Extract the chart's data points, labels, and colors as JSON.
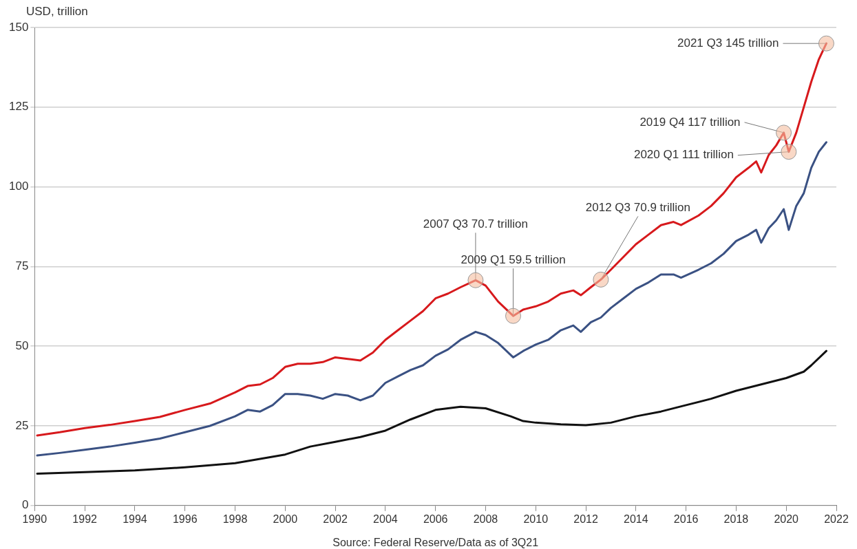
{
  "chart_data": {
    "type": "line",
    "ylabel": "USD, trillion",
    "annotations": [
      {
        "text": "2007 Q3 70.7 trillion",
        "x": 2007.6,
        "y": 70.7
      },
      {
        "text": "2009 Q1 59.5 trillion",
        "x": 2009.1,
        "y": 59.5
      },
      {
        "text": "2012 Q3 70.9 trillion",
        "x": 2012.6,
        "y": 70.9
      },
      {
        "text": "2019 Q4 117 trillion",
        "x": 2019.9,
        "y": 117
      },
      {
        "text": "2020 Q1 111 trillion",
        "x": 2020.1,
        "y": 111
      },
      {
        "text": "2021 Q3 145 trillion",
        "x": 2021.6,
        "y": 145
      },
      "Source: Federal Reserve/Data as of 3Q21"
    ],
    "series": [
      {
        "color": "#d7191c",
        "x": [
          1990.1,
          1991,
          1992,
          1993,
          1994,
          1995,
          1996,
          1997,
          1998,
          1998.5,
          1999,
          1999.5,
          2000,
          2000.5,
          2001,
          2001.5,
          2002,
          2002.5,
          2003,
          2003.5,
          2004,
          2004.5,
          2005,
          2005.5,
          2006,
          2006.5,
          2007,
          2007.6,
          2008,
          2008.5,
          2009.1,
          2009.5,
          2010,
          2010.5,
          2011,
          2011.5,
          2011.8,
          2012.2,
          2012.6,
          2013,
          2013.5,
          2014,
          2014.5,
          2015,
          2015.5,
          2015.8,
          2016.5,
          2017,
          2017.5,
          2018,
          2018.5,
          2018.8,
          2019,
          2019.3,
          2019.6,
          2019.9,
          2020.1,
          2020.4,
          2020.7,
          2021,
          2021.3,
          2021.6
        ],
        "values": [
          22,
          23,
          24.3,
          25.3,
          26.5,
          27.8,
          30,
          32,
          35.5,
          37.5,
          38,
          40,
          43.5,
          44.5,
          44.5,
          45,
          46.5,
          46,
          45.5,
          48,
          52,
          55,
          58,
          61,
          65,
          66.5,
          68.5,
          70.7,
          69,
          64,
          59.5,
          61.5,
          62.5,
          64,
          66.5,
          67.5,
          66,
          68.5,
          70.9,
          74,
          78,
          82,
          85,
          88,
          89,
          88,
          91,
          94,
          98,
          103,
          106,
          108,
          104.5,
          110,
          113,
          117,
          111,
          117,
          125,
          133,
          140,
          145
        ]
      },
      {
        "color": "#3a5183",
        "x": [
          1990.1,
          1991,
          1992,
          1993,
          1994,
          1995,
          1996,
          1997,
          1998,
          1998.5,
          1999,
          1999.5,
          2000,
          2000.5,
          2001,
          2001.5,
          2002,
          2002.5,
          2003,
          2003.5,
          2004,
          2004.5,
          2005,
          2005.5,
          2006,
          2006.5,
          2007,
          2007.6,
          2008,
          2008.5,
          2009.1,
          2009.5,
          2010,
          2010.5,
          2011,
          2011.5,
          2011.8,
          2012.2,
          2012.6,
          2013,
          2013.5,
          2014,
          2014.5,
          2015,
          2015.5,
          2015.8,
          2016.5,
          2017,
          2017.5,
          2018,
          2018.5,
          2018.8,
          2019,
          2019.3,
          2019.6,
          2019.9,
          2020.1,
          2020.4,
          2020.7,
          2021,
          2021.3,
          2021.6
        ],
        "values": [
          15.7,
          16.5,
          17.5,
          18.5,
          19.7,
          21,
          23,
          25,
          28,
          30,
          29.5,
          31.5,
          35,
          35,
          34.5,
          33.5,
          35,
          34.5,
          33,
          34.5,
          38.5,
          40.5,
          42.5,
          44,
          47,
          49,
          52,
          54.5,
          53.5,
          51,
          46.5,
          48.5,
          50.5,
          52,
          55,
          56.5,
          54.5,
          57.5,
          59,
          62,
          65,
          68,
          70,
          72.5,
          72.5,
          71.5,
          74,
          76,
          79,
          83,
          85,
          86.5,
          82.5,
          87,
          89.5,
          93,
          86.5,
          94,
          98,
          106,
          111,
          114
        ]
      },
      {
        "color": "#111111",
        "x": [
          1990.1,
          1992,
          1994,
          1996,
          1998,
          2000,
          2001,
          2002,
          2003,
          2004,
          2005,
          2006,
          2007,
          2008,
          2009,
          2009.5,
          2010,
          2011,
          2012,
          2013,
          2014,
          2015,
          2016,
          2017,
          2018,
          2019,
          2020,
          2020.7,
          2021,
          2021.6
        ],
        "values": [
          10,
          10.5,
          11,
          12,
          13.3,
          16,
          18.5,
          20,
          21.5,
          23.5,
          27,
          30,
          31,
          30.5,
          28,
          26.5,
          26,
          25.5,
          25.2,
          26,
          28,
          29.5,
          31.5,
          33.5,
          36,
          38,
          40,
          42,
          44,
          48.5
        ]
      }
    ],
    "xlim": [
      1990,
      2022
    ],
    "xticks": [
      1990,
      1992,
      1994,
      1996,
      1998,
      2000,
      2002,
      2004,
      2006,
      2008,
      2010,
      2012,
      2014,
      2016,
      2018,
      2020,
      2022
    ],
    "ylim": [
      0,
      150
    ],
    "yticks": [
      0,
      25,
      50,
      75,
      100,
      125,
      150
    ],
    "grid": "y",
    "legend": false,
    "marker": "none",
    "line_style": "solid"
  }
}
